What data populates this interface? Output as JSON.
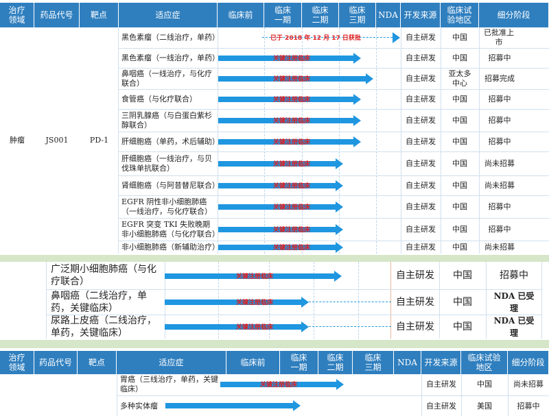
{
  "headers_top": [
    "治疗领域",
    "药品代号",
    "靶点",
    "适应症",
    "临床前",
    "临床一期",
    "临床二期",
    "临床三期",
    "NDA",
    "开发来源",
    "临床试验地区",
    "细分阶段"
  ],
  "group_top": {
    "field": "肿瘤",
    "code": "JS001",
    "target": "PD-1"
  },
  "rows_top": [
    {
      "indication": "黑色素瘤（二线治疗，单药）",
      "arrow_label": "已于 2018 年 12 月 17 日获批",
      "source": "自主研发",
      "region": "中国",
      "stage": "已批准上市"
    },
    {
      "indication": "黑色素瘤（一线治疗，单药）",
      "arrow_label": "关键注册临床",
      "source": "自主研发",
      "region": "中国",
      "stage": "招募中"
    },
    {
      "indication": "鼻咽癌（一线治疗，与化疗联合）",
      "arrow_label": "关键注册临床",
      "source": "自主研发",
      "region": "亚太多中心",
      "stage": "招募完成"
    },
    {
      "indication": "食管癌（与化疗联合）",
      "arrow_label": "关键注册临床",
      "source": "自主研发",
      "region": "中国",
      "stage": "招募中"
    },
    {
      "indication": "三阴乳腺癌（与白蛋白紫杉醇联合）",
      "arrow_label": "关键注册临床",
      "source": "自主研发",
      "region": "中国",
      "stage": "招募中"
    },
    {
      "indication": "肝细胞癌（单药，术后辅助）",
      "arrow_label": "关键注册临床",
      "source": "自主研发",
      "region": "中国",
      "stage": "招募中"
    },
    {
      "indication": "肝细胞癌（一线治疗，与贝伐珠单抗联合）",
      "arrow_label": "关键注册临床",
      "source": "自主研发",
      "region": "中国",
      "stage": "尚未招募"
    },
    {
      "indication": "肾细胞癌（与阿昔替尼联合）",
      "arrow_label": "关键注册临床",
      "source": "自主研发",
      "region": "中国",
      "stage": "尚未招募"
    },
    {
      "indication": "EGFR 阴性非小细胞肺癌（一线治疗，与化疗联合）",
      "arrow_label": "关键注册临床",
      "source": "自主研发",
      "region": "中国",
      "stage": "招募中"
    },
    {
      "indication": "EGFR 突变 TKI 失败晚期非小细胞肺癌（与化疗联合）",
      "arrow_label": "关键注册临床",
      "source": "自主研发",
      "region": "中国",
      "stage": "招募中"
    },
    {
      "indication": "非小细胞肺癌（新辅助治疗）",
      "arrow_label": "关键注册临床",
      "source": "自主研发",
      "region": "中国",
      "stage": "尚未招募"
    }
  ],
  "rows_mid": [
    {
      "indication": "广泛期小细胞肺癌（与化疗联合）",
      "arrow_label": "关键注册临床",
      "source": "自主研发",
      "region": "中国",
      "stage": "招募中"
    },
    {
      "indication": "鼻咽癌（二线治疗，单药，关键临床）",
      "arrow_label": "关键注册临床",
      "source": "自主研发",
      "region": "中国",
      "stage": "NDA 已受理"
    },
    {
      "indication": "尿路上皮癌（二线治疗，单药，关键临床）",
      "arrow_label": "关键注册临床",
      "source": "自主研发",
      "region": "中国",
      "stage": "NDA 已受理"
    }
  ],
  "headers_bottom": [
    "治疗领域",
    "药品代号",
    "靶点",
    "适应症",
    "临床前",
    "临床一期",
    "临床二期",
    "临床三期",
    "NDA",
    "开发来源",
    "临床试验地区",
    "细分阶段"
  ],
  "rows_bottom": [
    {
      "indication": "胃癌（三线治疗，单药，关键临床）",
      "arrow_label": "关键注册临床",
      "source": "自主研发",
      "region": "中国",
      "stage": "尚未招募"
    },
    {
      "indication": "多种实体瘤",
      "arrow_label": "",
      "source": "自主研发",
      "region": "美国",
      "stage": "招募中"
    }
  ]
}
